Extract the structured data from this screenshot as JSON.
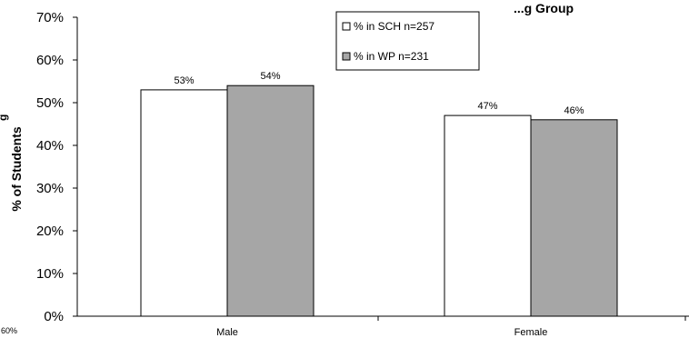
{
  "chart_data": {
    "type": "bar",
    "title": "...g Group",
    "ylabel": "% of Students",
    "xlabel": "",
    "categories": [
      "Male",
      "Female"
    ],
    "series": [
      {
        "name": "% in SCH n=257",
        "values": [
          53,
          47
        ],
        "labels": [
          "53%",
          "47%"
        ],
        "color": "#ffffff"
      },
      {
        "name": "% in WP n=231",
        "values": [
          54,
          46
        ],
        "labels": [
          "54%",
          "46%"
        ],
        "color": "#a6a6a6"
      }
    ],
    "ylim": [
      0,
      70
    ],
    "yticks": [
      "0%",
      "10%",
      "20%",
      "30%",
      "40%",
      "50%",
      "60%",
      "70%"
    ],
    "grid": false,
    "legend_position": "top-right",
    "cropped_text": {
      "left_edge_fragment": "60%",
      "left_edge_glyph": "g"
    }
  }
}
